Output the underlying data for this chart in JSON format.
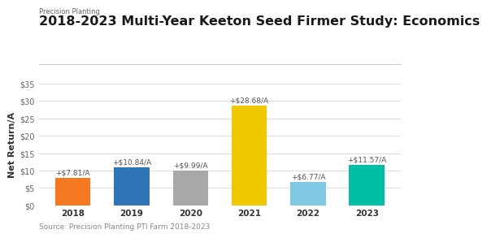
{
  "title": "2018-2023 Multi-Year Keeton Seed Firmer Study: Economics",
  "ylabel": "Net Return/A",
  "source": "Source: Precision Planting PTI Farm 2018-2023",
  "logo_text": "Precision Planting",
  "categories": [
    "2018",
    "2019",
    "2020",
    "2021",
    "2022",
    "2023"
  ],
  "values": [
    7.81,
    10.84,
    9.99,
    28.68,
    6.77,
    11.57
  ],
  "labels": [
    "+$7.81/A",
    "+$10.84/A",
    "+$9.99/A",
    "+$28.68/A",
    "+$6.77/A",
    "+$11.57/A"
  ],
  "bar_colors": [
    "#F47920",
    "#2E75B6",
    "#A8A8A8",
    "#F0C800",
    "#7EC8E3",
    "#00BFA5"
  ],
  "ylim": [
    0,
    35
  ],
  "yticks": [
    0,
    5,
    10,
    15,
    20,
    25,
    30,
    35
  ],
  "ytick_labels": [
    "$0",
    "$5",
    "$10",
    "$15",
    "$20",
    "$25",
    "$30",
    "$35"
  ],
  "background_color": "#ffffff",
  "grid_color": "#DDDDDD",
  "title_fontsize": 11.5,
  "label_fontsize": 6.5,
  "ylabel_fontsize": 8,
  "xtick_fontsize": 7.5,
  "ytick_fontsize": 7,
  "source_fontsize": 6.5,
  "logo_fontsize": 6,
  "bar_width": 0.6
}
